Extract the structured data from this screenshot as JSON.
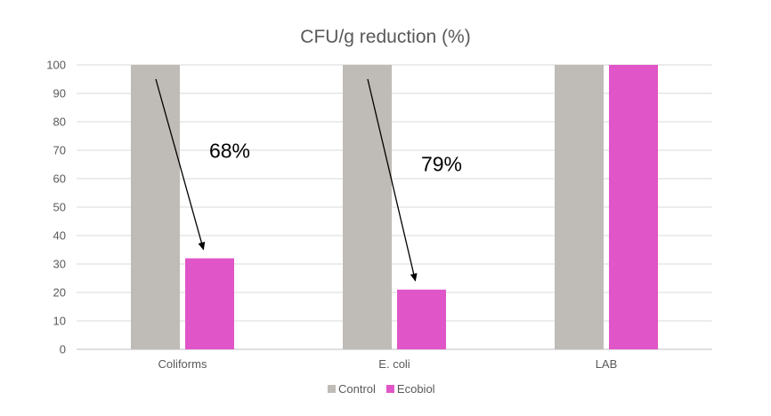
{
  "chart_data": {
    "type": "bar",
    "title": "CFU/g reduction (%)",
    "xlabel": "",
    "ylabel": "",
    "categories": [
      "Coliforms",
      "E. coli",
      "LAB"
    ],
    "series": [
      {
        "name": "Control",
        "color": "#BFBBB6",
        "values": [
          100,
          100,
          100
        ]
      },
      {
        "name": "Ecobiol",
        "color": "#E055C8",
        "values": [
          32,
          21,
          100
        ]
      }
    ],
    "ylim": [
      0,
      100
    ],
    "yticks": [
      0,
      10,
      20,
      30,
      40,
      50,
      60,
      70,
      80,
      90,
      100
    ],
    "grid": true,
    "legend_position": "bottom",
    "annotations": [
      {
        "text": "68%",
        "category": "Coliforms"
      },
      {
        "text": "79%",
        "category": "E. coli"
      }
    ]
  }
}
